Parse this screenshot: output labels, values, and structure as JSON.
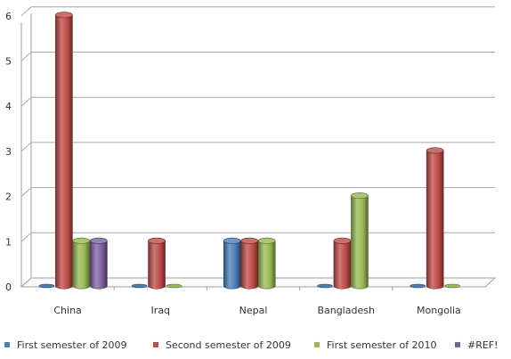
{
  "chart_data": {
    "type": "bar",
    "style": "3d-cylinder",
    "categories": [
      "China",
      "Iraq",
      "Nepal",
      "Bangladesh",
      "Mongolia"
    ],
    "series": [
      {
        "name": "First semester of 2009",
        "color": "#4a7ebb",
        "values": [
          0,
          0,
          1,
          0,
          0
        ]
      },
      {
        "name": "Second semester of 2009",
        "color": "#be4b48",
        "values": [
          6,
          1,
          1,
          1,
          3
        ]
      },
      {
        "name": "First semester of 2010",
        "color": "#98b954",
        "values": [
          1,
          0,
          1,
          2,
          0
        ]
      },
      {
        "name": "#REF!",
        "color": "#7d60a0",
        "values": [
          1,
          null,
          null,
          null,
          null
        ]
      }
    ],
    "y_ticks": [
      "0",
      "1",
      "2",
      "3",
      "4",
      "5",
      "6"
    ],
    "ylim": [
      0,
      6
    ],
    "grid": true,
    "legend_position": "bottom"
  }
}
